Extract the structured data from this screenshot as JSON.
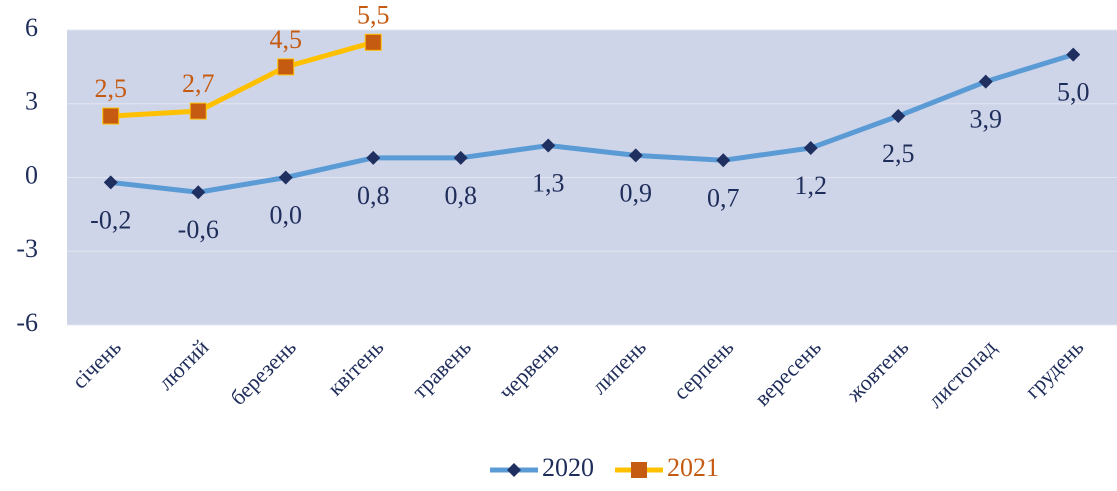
{
  "chart_data": {
    "type": "line",
    "categories": [
      "січень",
      "лютий",
      "березень",
      "квітень",
      "травень",
      "червень",
      "липень",
      "серпень",
      "вересень",
      "жовтень",
      "листопад",
      "грудень"
    ],
    "series": [
      {
        "name": "2020",
        "color": "#5b9bd5",
        "marker_color": "#1f2f5f",
        "marker": "diamond",
        "values": [
          -0.2,
          -0.6,
          0.0,
          0.8,
          0.8,
          1.3,
          0.9,
          0.7,
          1.2,
          2.5,
          3.9,
          5.0
        ],
        "value_labels": [
          "-0,2",
          "-0,6",
          "0,0",
          "0,8",
          "0,8",
          "1,3",
          "0,9",
          "0,7",
          "1,2",
          "2,5",
          "3,9",
          "5,0"
        ]
      },
      {
        "name": "2021",
        "color": "#ffc000",
        "marker_color": "#c55a11",
        "marker": "square",
        "values": [
          2.5,
          2.7,
          4.5,
          5.5,
          null,
          null,
          null,
          null,
          null,
          null,
          null,
          null
        ],
        "value_labels": [
          "2,5",
          "2,7",
          "4,5",
          "5,5",
          null,
          null,
          null,
          null,
          null,
          null,
          null,
          null
        ]
      }
    ],
    "ylim": [
      -6,
      6
    ],
    "yticks": [
      -6,
      -3,
      0,
      3,
      6
    ],
    "grid": true
  }
}
